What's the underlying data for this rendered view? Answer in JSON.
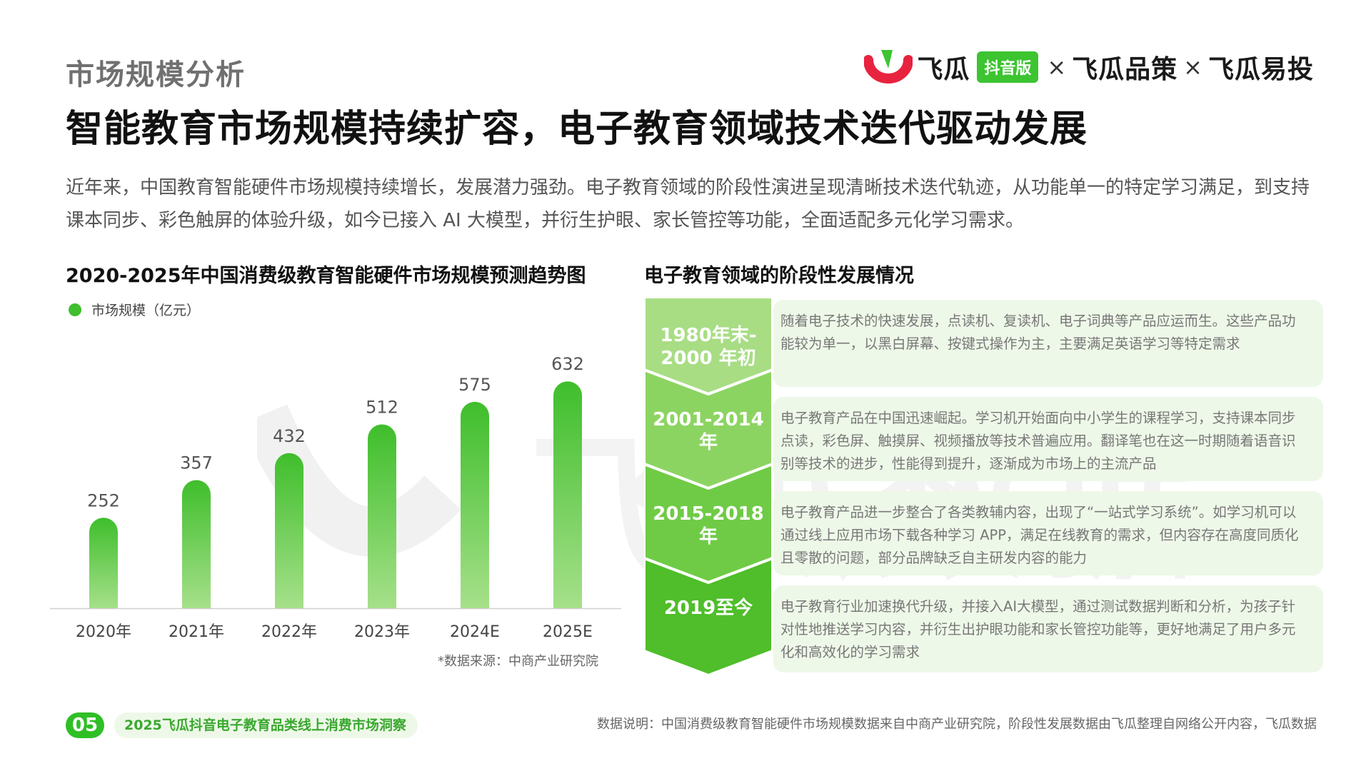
{
  "header": {
    "section_label": "市场规模分析",
    "headline": "智能教育市场规模持续扩容，电子教育领域技术迭代驱动发展",
    "brand": {
      "name1": "飞瓜",
      "tag": "抖音版",
      "separator": "×",
      "name2": "飞瓜品策",
      "name3": "飞瓜易投",
      "logo_icon": "feigua-logo-icon",
      "colors": {
        "logo_green": "#3cc431",
        "logo_red": "#e8233f"
      }
    }
  },
  "intro": "近年来，中国教育智能硬件市场规模持续增长，发展潜力强劲。电子教育领域的阶段性演进呈现清晰技术迭代轨迹，从功能单一的特定学习满足，到支持课本同步、彩色触屏的体验升级，如今已接入 AI 大模型，并衍生护眼、家长管控等功能，全面适配多元化学习需求。",
  "chart_data": {
    "type": "bar",
    "title": "2020-2025年中国消费级教育智能硬件市场规模预测趋势图",
    "categories": [
      "2020年",
      "2021年",
      "2022年",
      "2023年",
      "2024E",
      "2025E"
    ],
    "series": [
      {
        "name": "市场规模（亿元）",
        "values": [
          252,
          357,
          432,
          512,
          575,
          632
        ],
        "color": "#45c236"
      }
    ],
    "ylim": [
      0,
      700
    ],
    "grid": false,
    "legend": "top-left",
    "source": "*数据来源：中商产业研究院"
  },
  "stages": {
    "title": "电子教育领域的阶段性发展情况",
    "items": [
      {
        "period": "1980年末-\n2000 年初",
        "text": "随着电子技术的快速发展，点读机、复读机、电子词典等产品应运而生。这些产品功能较为单一，以黑白屏幕、按键式操作为主，主要满足英语学习等特定需求"
      },
      {
        "period": "2001-2014年",
        "text": "电子教育产品在中国迅速崛起。学习机开始面向中小学生的课程学习，支持课本同步点读，彩色屏、触摸屏、视频播放等技术普遍应用。翻译笔也在这一时期随着语音识别等技术的进步，性能得到提升，逐渐成为市场上的主流产品"
      },
      {
        "period": "2015-2018年",
        "text": "电子教育产品进一步整合了各类教辅内容，出现了“一站式学习系统”。如学习机可以通过线上应用市场下载各种学习 APP，满足在线教育的需求，但内容存在高度同质化且零散的问题，部分品牌缺乏自主研发内容的能力"
      },
      {
        "period": "2019至今",
        "text": "电子教育行业加速换代升级，并接入AI大模型，通过测试数据判断和分析，为孩子针对性地推送学习内容，并衍生出护眼功能和家长管控功能等，更好地满足了用户多元化和高效化的学习需求"
      }
    ],
    "colors": [
      "#a8dd84",
      "#8cd462",
      "#6fcb45",
      "#4fbe2a"
    ]
  },
  "footer": {
    "page_number": "05",
    "report_name": "2025飞瓜抖音电子教育品类线上消费市场洞察",
    "note": "数据说明：中国消费级教育智能硬件市场规模数据来自中商产业研究院，阶段性发展数据由飞瓜整理自网络公开内容，飞瓜数据"
  },
  "watermark_text": "飞瓜数据"
}
